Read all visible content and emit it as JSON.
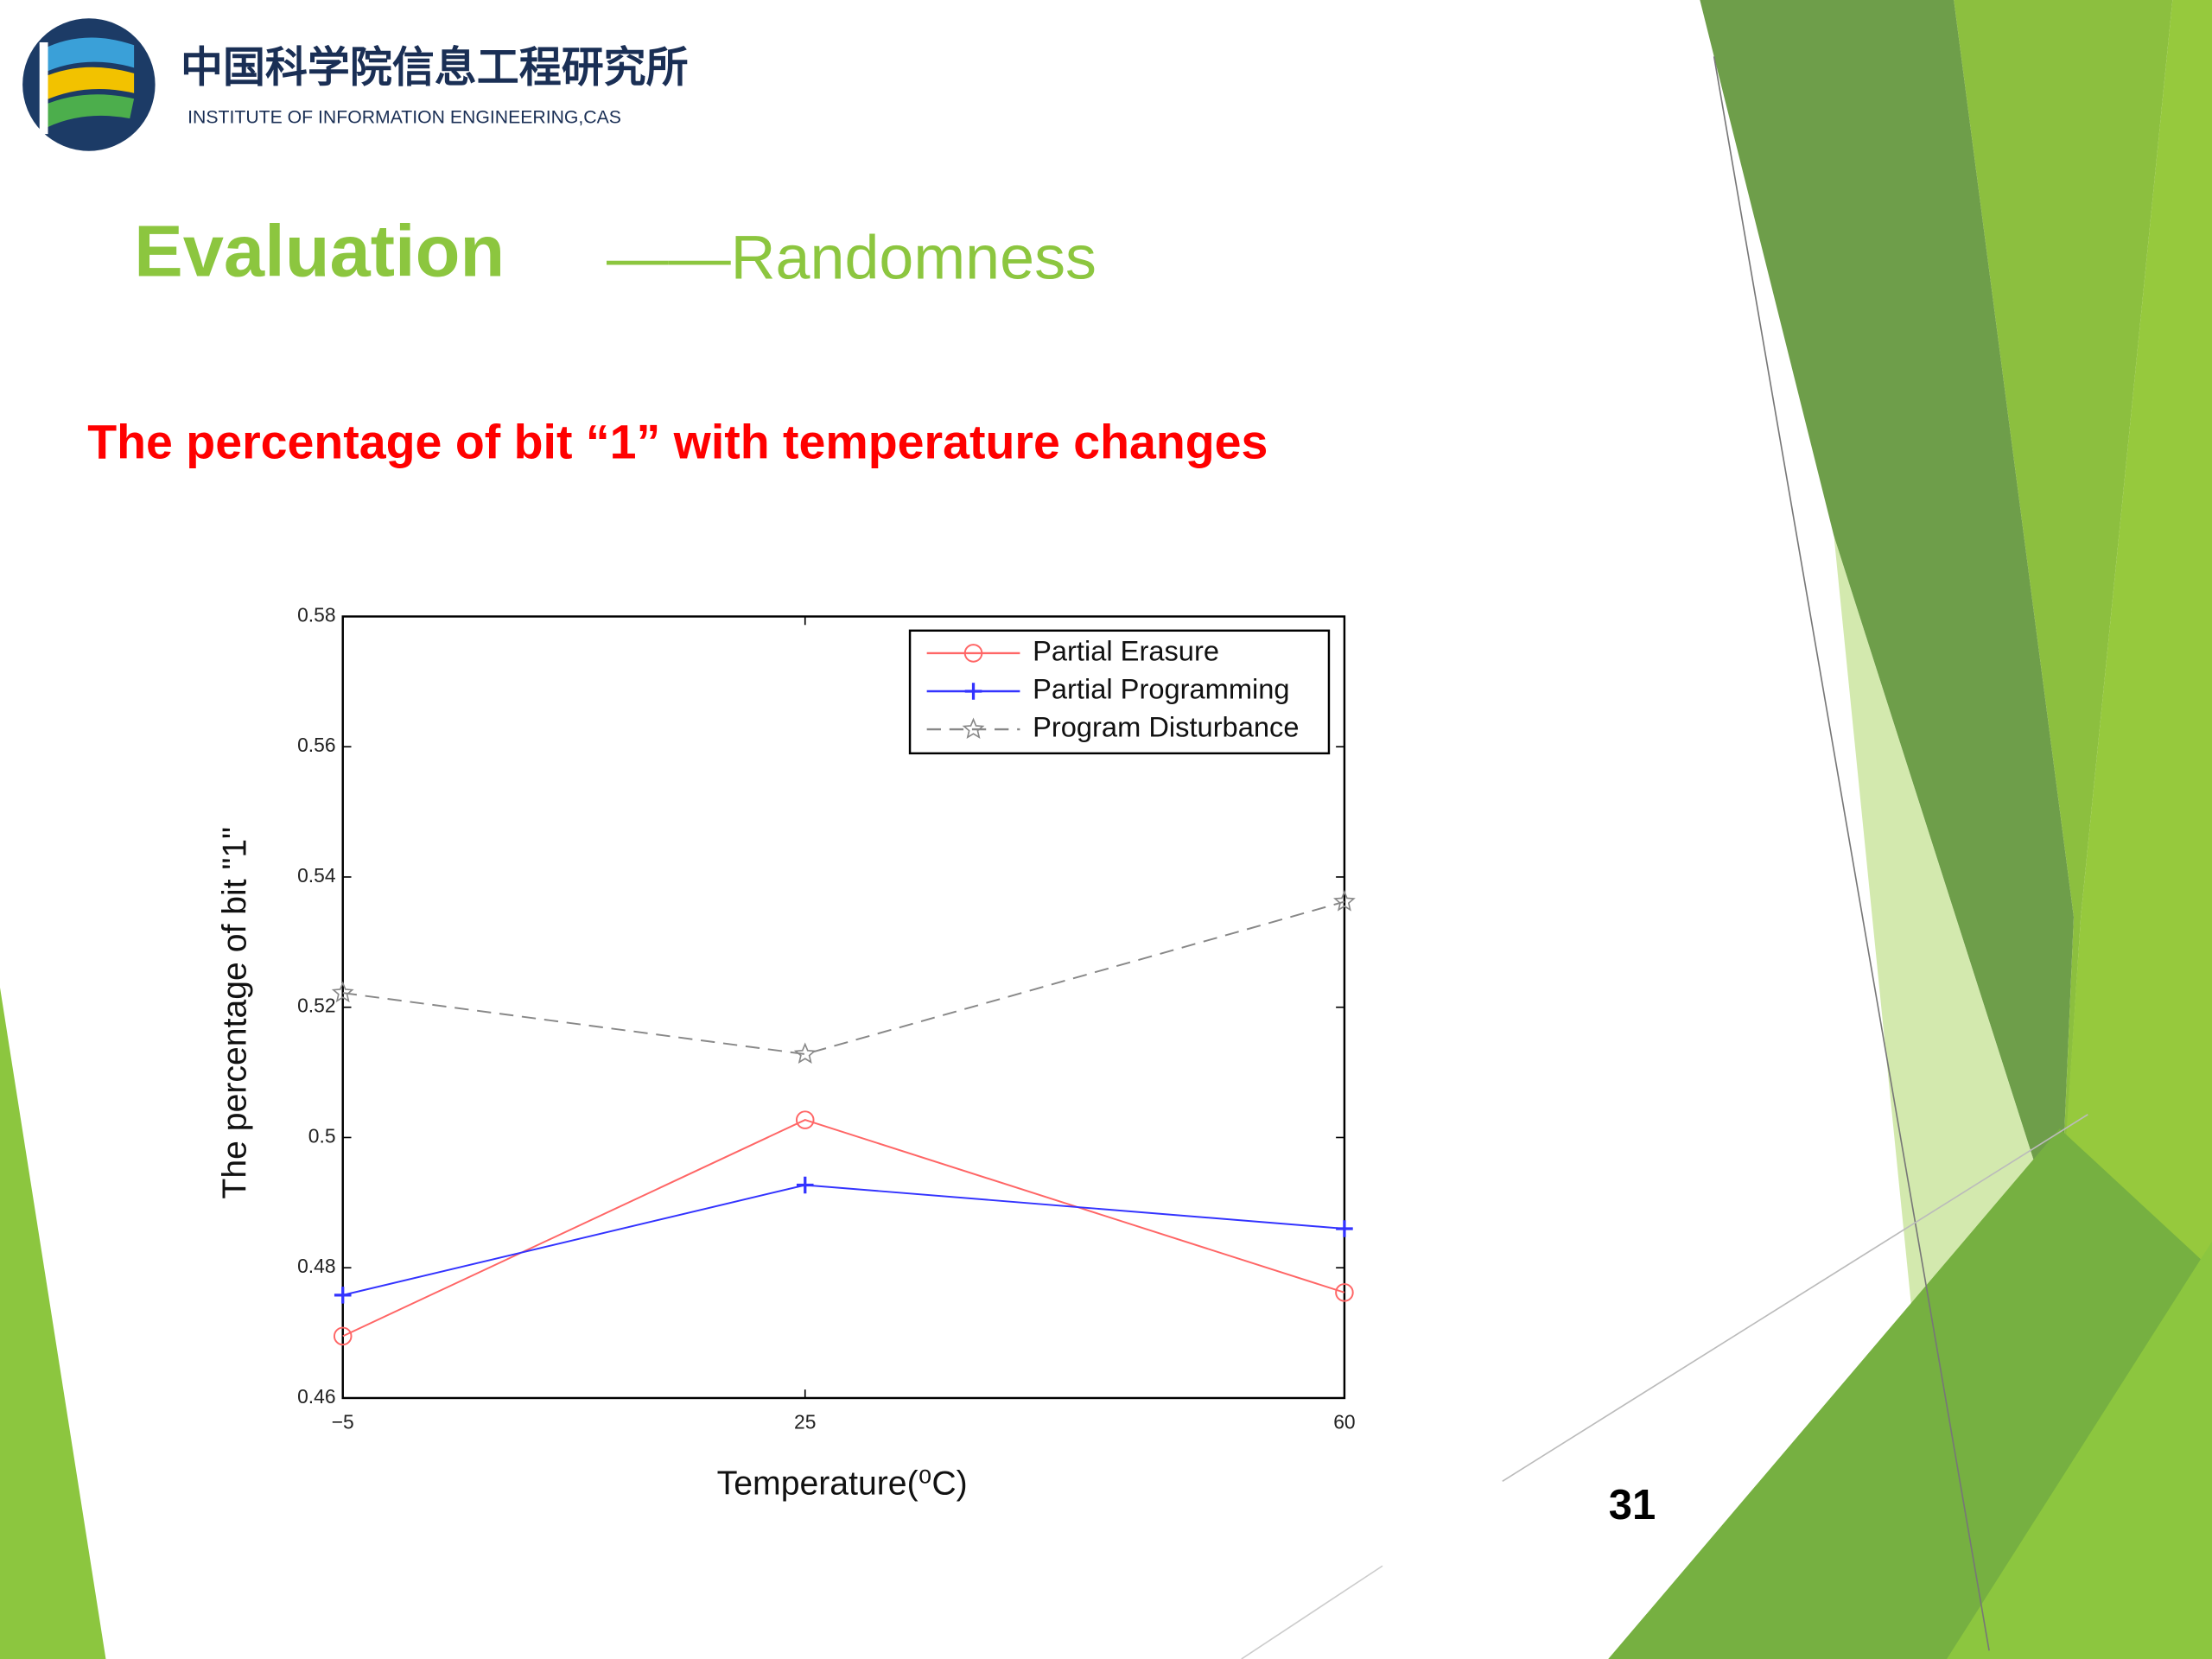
{
  "slide": {
    "logo_cn": "中国科学院信息工程研究所",
    "logo_en": "INSTITUTE OF INFORMATION ENGINEERING,CAS",
    "title": "Evaluation",
    "title_suffix": "——Randomness",
    "subtitle": "The percentage of bit “1” with temperature changes",
    "page_number": "31"
  },
  "chart_data": {
    "type": "line",
    "xlabel": "Temperature(⁰C)",
    "ylabel": "The percentage of bit \"1\"",
    "x": [
      -5,
      25,
      60
    ],
    "series": [
      {
        "name": "Partial Erasure",
        "color": "#ff6666",
        "linestyle": "solid",
        "marker": "o",
        "values": [
          0.4695,
          0.5027,
          0.4762
        ]
      },
      {
        "name": "Partial Programming",
        "color": "#3333ff",
        "linestyle": "solid",
        "marker": "+",
        "values": [
          0.4758,
          0.4927,
          0.486
        ]
      },
      {
        "name": "Program Disturbance",
        "color": "#888888",
        "linestyle": "dashed",
        "marker": "*",
        "values": [
          0.5222,
          0.5128,
          0.5362
        ]
      }
    ],
    "xlim": [
      -5,
      60
    ],
    "xticks": [
      {
        "value": -5,
        "label": "−5"
      },
      25,
      60
    ],
    "ylim": [
      0.46,
      0.58
    ],
    "yticks": [
      0.46,
      0.48,
      0.5,
      0.52,
      0.54,
      0.56,
      0.58
    ],
    "grid": false,
    "legend": "upper right"
  }
}
